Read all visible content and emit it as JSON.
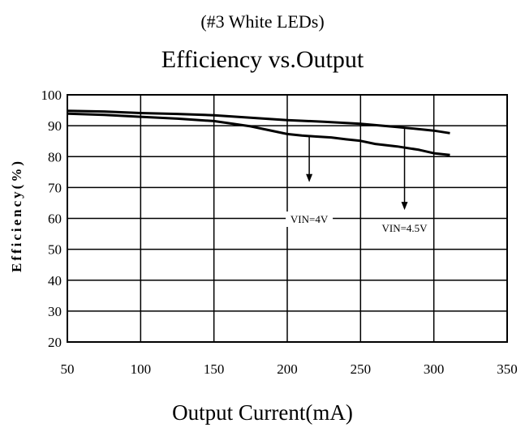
{
  "chart_data": {
    "type": "line",
    "subtitle": "(#3 White LEDs)",
    "title": "Efficiency vs.Output",
    "xlabel": "Output Current(mA)",
    "ylabel": "Efficiency(%)",
    "xlim": [
      50,
      350
    ],
    "ylim": [
      20,
      100
    ],
    "xticks": [
      50,
      100,
      150,
      200,
      250,
      300,
      350
    ],
    "yticks": [
      20,
      30,
      40,
      50,
      60,
      70,
      80,
      90,
      100
    ],
    "grid": true,
    "series": [
      {
        "name": "VIN=4.5V",
        "x": [
          50,
          75,
          100,
          125,
          150,
          175,
          200,
          225,
          250,
          275,
          300,
          311
        ],
        "y": [
          94.8,
          94.6,
          94.1,
          93.8,
          93.4,
          92.6,
          91.8,
          91.3,
          90.6,
          89.6,
          88.4,
          87.6
        ]
      },
      {
        "name": "VIN=4V",
        "x": [
          50,
          75,
          100,
          125,
          150,
          175,
          200,
          210,
          220,
          230,
          240,
          250,
          260,
          275,
          290,
          300,
          311
        ],
        "y": [
          93.9,
          93.5,
          92.9,
          92.3,
          91.5,
          89.8,
          87.3,
          86.8,
          86.5,
          86.2,
          85.6,
          85.1,
          84.1,
          83.3,
          82.2,
          81.1,
          80.5
        ]
      }
    ],
    "annotations": [
      {
        "text": "VIN=4V",
        "arrow_x": 215,
        "arrow_from_y": 86.5,
        "arrow_to_y": 72
      },
      {
        "text": "VIN=4.5V",
        "arrow_x": 280,
        "arrow_from_y": 89.5,
        "arrow_to_y": 63
      }
    ]
  }
}
